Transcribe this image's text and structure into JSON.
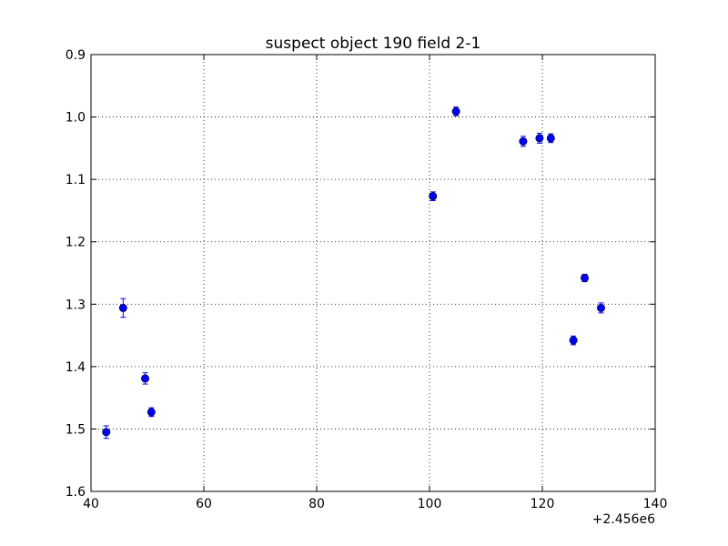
{
  "chart_data": {
    "type": "scatter",
    "title": "suspect object 190 field 2-1",
    "xlabel": "",
    "ylabel": "",
    "x_offset_label": "+2.456e6",
    "xlim": [
      40,
      140
    ],
    "ylim": [
      0.9,
      1.6
    ],
    "y_inverted": true,
    "x_ticks": [
      40,
      60,
      80,
      100,
      120,
      140
    ],
    "x_tick_labels": [
      "40",
      "60",
      "80",
      "100",
      "120",
      "140"
    ],
    "y_ticks": [
      0.9,
      1.0,
      1.1,
      1.2,
      1.3,
      1.4,
      1.5,
      1.6
    ],
    "y_tick_labels": [
      "0.9",
      "1.0",
      "1.1",
      "1.2",
      "1.3",
      "1.4",
      "1.5",
      "1.6"
    ],
    "grid": true,
    "marker_color": "#0000ff",
    "series": [
      {
        "points": [
          {
            "x": 42.7,
            "y": 1.505,
            "err": 0.01
          },
          {
            "x": 45.7,
            "y": 1.306,
            "err": 0.015
          },
          {
            "x": 49.6,
            "y": 1.419,
            "err": 0.009
          },
          {
            "x": 50.7,
            "y": 1.473,
            "err": 0.007
          },
          {
            "x": 100.6,
            "y": 1.127,
            "err": 0.007
          },
          {
            "x": 104.7,
            "y": 0.991,
            "err": 0.007
          },
          {
            "x": 116.6,
            "y": 1.039,
            "err": 0.008
          },
          {
            "x": 119.5,
            "y": 1.034,
            "err": 0.008
          },
          {
            "x": 121.5,
            "y": 1.034,
            "err": 0.007
          },
          {
            "x": 125.5,
            "y": 1.358,
            "err": 0.007
          },
          {
            "x": 127.5,
            "y": 1.258,
            "err": 0.006
          },
          {
            "x": 130.4,
            "y": 1.306,
            "err": 0.008
          }
        ]
      }
    ]
  }
}
